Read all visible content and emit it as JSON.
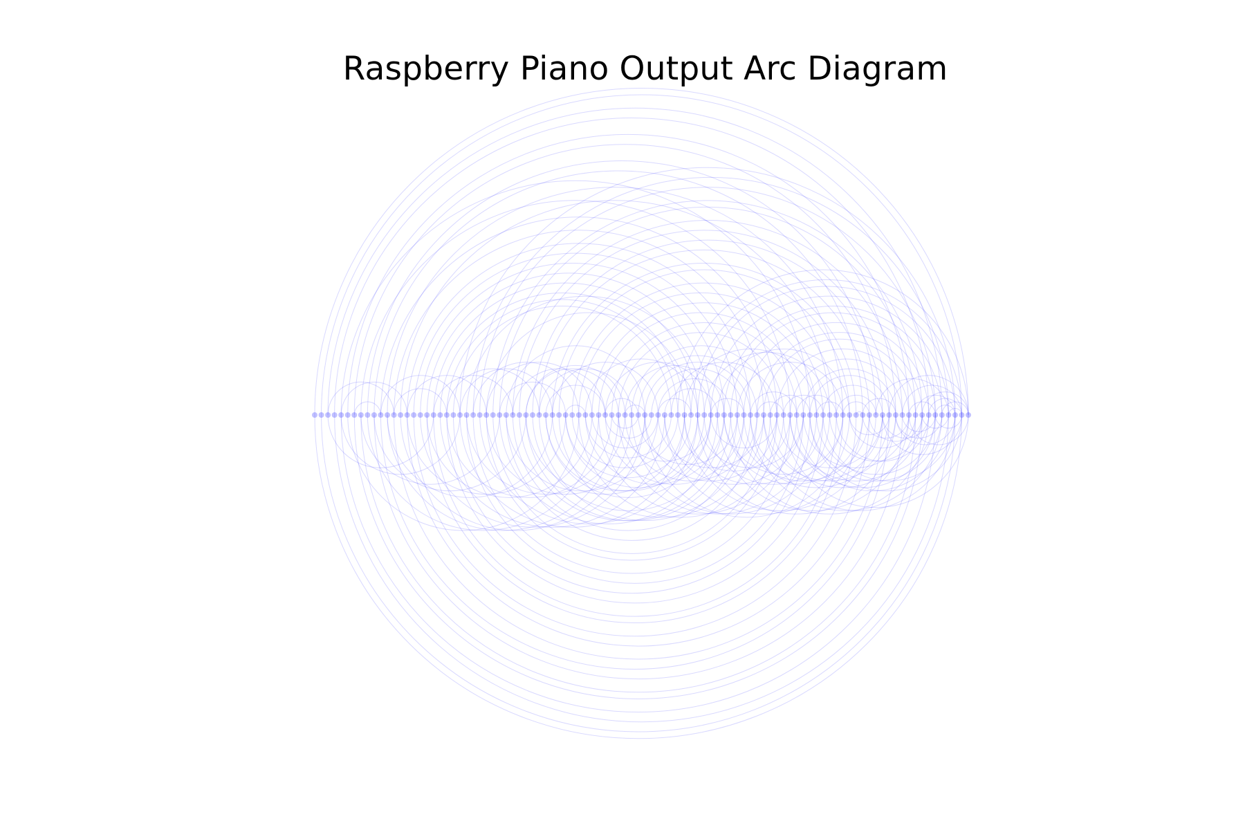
{
  "chart_data": {
    "type": "arc_diagram",
    "title": "Raspberry Piano Output Arc Diagram",
    "arc_color": "#4c4cff",
    "background_color": "#ffffff",
    "node_count": 100,
    "arcs_above_axis": [
      [
        0,
        99
      ],
      [
        1,
        98
      ],
      [
        2,
        95
      ],
      [
        3,
        93
      ],
      [
        5,
        90
      ],
      [
        6,
        88
      ],
      [
        8,
        85
      ],
      [
        9,
        83
      ],
      [
        11,
        80
      ],
      [
        13,
        78
      ],
      [
        4,
        75
      ],
      [
        7,
        72
      ],
      [
        10,
        70
      ],
      [
        12,
        68
      ],
      [
        14,
        66
      ],
      [
        15,
        64
      ],
      [
        16,
        62
      ],
      [
        17,
        60
      ],
      [
        18,
        58
      ],
      [
        19,
        56
      ],
      [
        20,
        55
      ],
      [
        21,
        54
      ],
      [
        22,
        97
      ],
      [
        24,
        96
      ],
      [
        25,
        94
      ],
      [
        27,
        92
      ],
      [
        28,
        91
      ],
      [
        30,
        89
      ],
      [
        31,
        87
      ],
      [
        33,
        86
      ],
      [
        34,
        84
      ],
      [
        36,
        82
      ],
      [
        37,
        81
      ],
      [
        39,
        79
      ],
      [
        40,
        77
      ],
      [
        42,
        76
      ],
      [
        43,
        74
      ],
      [
        45,
        73
      ],
      [
        46,
        71
      ],
      [
        48,
        69
      ],
      [
        49,
        67
      ],
      [
        51,
        65
      ],
      [
        52,
        63
      ],
      [
        53,
        61
      ],
      [
        23,
        59
      ],
      [
        26,
        57
      ],
      [
        29,
        50
      ],
      [
        32,
        47
      ],
      [
        35,
        44
      ],
      [
        38,
        41
      ],
      [
        55,
        99
      ],
      [
        57,
        98
      ],
      [
        58,
        97
      ],
      [
        60,
        96
      ],
      [
        62,
        95
      ],
      [
        63,
        94
      ],
      [
        65,
        93
      ],
      [
        67,
        92
      ],
      [
        68,
        91
      ],
      [
        70,
        90
      ],
      [
        72,
        89
      ],
      [
        74,
        88
      ],
      [
        75,
        87
      ],
      [
        77,
        86
      ],
      [
        79,
        85
      ],
      [
        80,
        84
      ],
      [
        82,
        83
      ],
      [
        56,
        76
      ],
      [
        59,
        78
      ],
      [
        61,
        81
      ],
      [
        64,
        80
      ],
      [
        66,
        73
      ],
      [
        69,
        75
      ],
      [
        71,
        77
      ],
      [
        73,
        79
      ],
      [
        54,
        70
      ],
      [
        50,
        66
      ],
      [
        47,
        62
      ],
      [
        44,
        60
      ],
      [
        41,
        58
      ],
      [
        44,
        49
      ],
      [
        47,
        50
      ],
      [
        52,
        57
      ],
      [
        60,
        65
      ],
      [
        67,
        71
      ],
      [
        76,
        80
      ],
      [
        83,
        88
      ],
      [
        90,
        94
      ],
      [
        85,
        96
      ],
      [
        87,
        99
      ],
      [
        89,
        98
      ],
      [
        91,
        97
      ],
      [
        92,
        99
      ],
      [
        93,
        98
      ],
      [
        94,
        97
      ],
      [
        95,
        99
      ],
      [
        96,
        98
      ],
      [
        2,
        12
      ],
      [
        4,
        14
      ],
      [
        6,
        10
      ],
      [
        10,
        22
      ],
      [
        12,
        20
      ],
      [
        14,
        26
      ],
      [
        18,
        30
      ],
      [
        20,
        34
      ],
      [
        22,
        36
      ],
      [
        24,
        40
      ],
      [
        26,
        42
      ],
      [
        28,
        38
      ],
      [
        30,
        44
      ],
      [
        32,
        46
      ],
      [
        34,
        48
      ],
      [
        36,
        52
      ]
    ],
    "arcs_below_axis": [
      [
        0,
        98
      ],
      [
        1,
        97
      ],
      [
        3,
        96
      ],
      [
        4,
        94
      ],
      [
        6,
        92
      ],
      [
        7,
        91
      ],
      [
        9,
        89
      ],
      [
        10,
        87
      ],
      [
        12,
        86
      ],
      [
        14,
        84
      ],
      [
        15,
        82
      ],
      [
        17,
        80
      ],
      [
        18,
        79
      ],
      [
        20,
        77
      ],
      [
        21,
        75
      ],
      [
        23,
        74
      ],
      [
        24,
        72
      ],
      [
        26,
        70
      ],
      [
        27,
        69
      ],
      [
        29,
        67
      ],
      [
        30,
        65
      ],
      [
        32,
        64
      ],
      [
        33,
        62
      ],
      [
        35,
        60
      ],
      [
        36,
        59
      ],
      [
        38,
        57
      ],
      [
        39,
        55
      ],
      [
        41,
        54
      ],
      [
        42,
        52
      ],
      [
        44,
        51
      ],
      [
        45,
        49
      ],
      [
        5,
        40
      ],
      [
        8,
        43
      ],
      [
        11,
        46
      ],
      [
        13,
        48
      ],
      [
        16,
        50
      ],
      [
        19,
        53
      ],
      [
        22,
        56
      ],
      [
        25,
        58
      ],
      [
        28,
        61
      ],
      [
        31,
        63
      ],
      [
        34,
        66
      ],
      [
        37,
        68
      ],
      [
        40,
        71
      ],
      [
        43,
        73
      ],
      [
        46,
        76
      ],
      [
        48,
        78
      ],
      [
        50,
        81
      ],
      [
        53,
        83
      ],
      [
        56,
        85
      ],
      [
        58,
        88
      ],
      [
        61,
        90
      ],
      [
        63,
        93
      ],
      [
        66,
        95
      ],
      [
        68,
        97
      ],
      [
        71,
        99
      ],
      [
        73,
        96
      ],
      [
        76,
        94
      ],
      [
        78,
        92
      ],
      [
        81,
        91
      ],
      [
        83,
        90
      ],
      [
        86,
        93
      ],
      [
        88,
        95
      ],
      [
        90,
        99
      ],
      [
        92,
        96
      ],
      [
        94,
        98
      ],
      [
        62,
        80
      ],
      [
        64,
        84
      ],
      [
        66,
        86
      ],
      [
        68,
        88
      ],
      [
        70,
        86
      ],
      [
        72,
        92
      ],
      [
        74,
        90
      ],
      [
        75,
        95
      ],
      [
        77,
        97
      ],
      [
        79,
        93
      ],
      [
        81,
        87
      ],
      [
        84,
        92
      ],
      [
        86,
        98
      ],
      [
        88,
        97
      ],
      [
        89,
        94
      ],
      [
        60,
        70
      ],
      [
        58,
        74
      ],
      [
        55,
        72
      ],
      [
        52,
        68
      ],
      [
        49,
        64
      ],
      [
        46,
        60
      ],
      [
        2,
        18
      ],
      [
        4,
        22
      ],
      [
        7,
        28
      ],
      [
        9,
        32
      ],
      [
        11,
        36
      ],
      [
        14,
        38
      ],
      [
        17,
        42
      ],
      [
        20,
        45
      ],
      [
        23,
        47
      ],
      [
        26,
        50
      ],
      [
        29,
        52
      ],
      [
        32,
        56
      ],
      [
        35,
        58
      ],
      [
        38,
        60
      ],
      [
        41,
        62
      ],
      [
        44,
        65
      ],
      [
        47,
        67
      ],
      [
        50,
        70
      ],
      [
        53,
        74
      ],
      [
        56,
        77
      ],
      [
        59,
        80
      ],
      [
        62,
        83
      ],
      [
        65,
        87
      ],
      [
        69,
        91
      ],
      [
        72,
        94
      ],
      [
        75,
        98
      ]
    ],
    "xlabel": "",
    "ylabel": "",
    "grid": false,
    "legend": "none"
  }
}
